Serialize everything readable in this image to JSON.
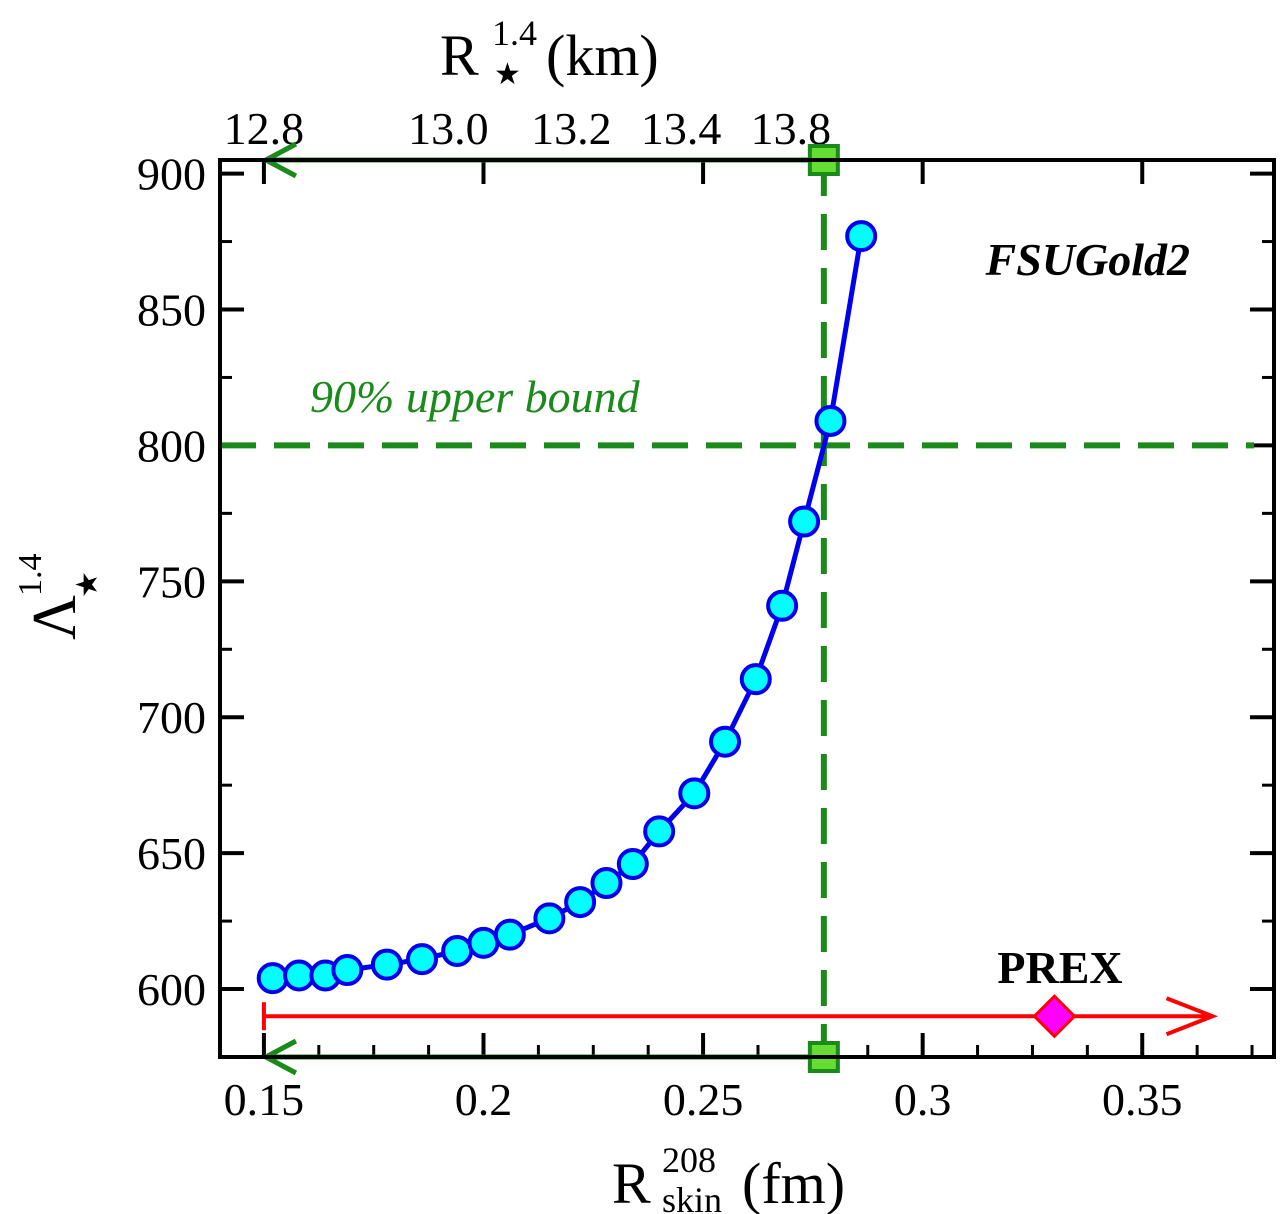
{
  "chart_data": {
    "type": "line",
    "model_label": "FSUGold2",
    "x_axis": {
      "label_main": "R",
      "label_sup": "208",
      "label_sub": "skin",
      "label_unit": "(fm)",
      "range": [
        0.14,
        0.38
      ],
      "ticks": [
        0.15,
        0.2,
        0.25,
        0.3,
        0.35
      ],
      "tick_labels": [
        "0.15",
        "0.2",
        "0.25",
        "0.3",
        "0.35"
      ]
    },
    "x2_axis": {
      "label_main": "R",
      "label_sup": "1.4",
      "label_sub": "★",
      "label_unit": "(km)",
      "tick_labels": [
        "12.8",
        "13.0",
        "13.2",
        "13.4",
        "13.8"
      ]
    },
    "y_axis": {
      "label_main": "Λ",
      "label_sup": "1.4",
      "label_sub": "★",
      "range": [
        575,
        905
      ],
      "ticks": [
        600,
        650,
        700,
        750,
        800,
        850,
        900
      ],
      "tick_labels": [
        "600",
        "650",
        "700",
        "750",
        "800",
        "850",
        "900"
      ]
    },
    "series": [
      {
        "color": "#0000ee",
        "marker_fill": "#00ffff",
        "x": [
          0.152,
          0.158,
          0.164,
          0.169,
          0.178,
          0.186,
          0.194,
          0.2,
          0.206,
          0.215,
          0.222,
          0.228,
          0.234,
          0.24,
          0.248,
          0.255,
          0.262,
          0.268,
          0.273,
          0.279,
          0.286
        ],
        "y": [
          604,
          605,
          605,
          607,
          609,
          611,
          614,
          617,
          620,
          626,
          632,
          639,
          646,
          658,
          672,
          691,
          714,
          741,
          772,
          809,
          877
        ]
      }
    ],
    "upper_bound": {
      "label": "90% upper bound",
      "y": 800,
      "x": 0.2775,
      "color": "#1a8a1a"
    },
    "prex": {
      "label": "PREX",
      "x_start": 0.15,
      "x_center": 0.33,
      "x_arrow_end": 0.366,
      "y": 590,
      "color": "#ff0000",
      "marker_fill": "#ff00ff"
    },
    "green_arrow_left_end_x": 0.15,
    "grid": false
  }
}
